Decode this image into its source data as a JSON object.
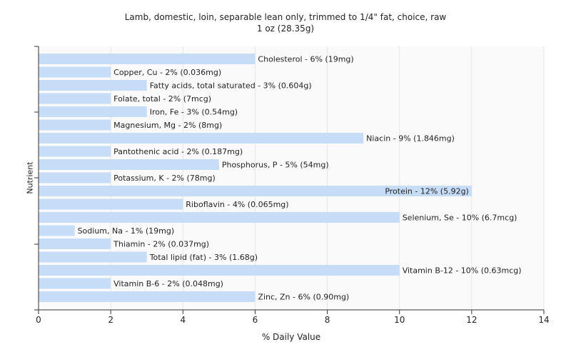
{
  "chart_data": {
    "type": "bar",
    "orientation": "horizontal",
    "title": "Lamb, domestic, loin, separable lean only, trimmed to 1/4\" fat, choice, raw",
    "subtitle": "1 oz (28.35g)",
    "xlabel": "% Daily Value",
    "ylabel": "Nutrient",
    "xlim": [
      0,
      14
    ],
    "xticks": [
      0,
      2,
      4,
      6,
      8,
      10,
      12,
      14
    ],
    "grid": true,
    "bar_color": "#c6dcf7",
    "categories": [
      "Cholesterol",
      "Copper, Cu",
      "Fatty acids, total saturated",
      "Folate, total",
      "Iron, Fe",
      "Magnesium, Mg",
      "Niacin",
      "Pantothenic acid",
      "Phosphorus, P",
      "Potassium, K",
      "Protein",
      "Riboflavin",
      "Selenium, Se",
      "Sodium, Na",
      "Thiamin",
      "Total lipid (fat)",
      "Vitamin B-12",
      "Vitamin B-6",
      "Zinc, Zn"
    ],
    "values": [
      6,
      2,
      3,
      2,
      3,
      2,
      9,
      2,
      5,
      2,
      12,
      4,
      10,
      1,
      2,
      3,
      10,
      2,
      6
    ],
    "labels": [
      "Cholesterol - 6% (19mg)",
      "Copper, Cu - 2% (0.036mg)",
      "Fatty acids, total saturated - 3% (0.604g)",
      "Folate, total - 2% (7mcg)",
      "Iron, Fe - 3% (0.54mg)",
      "Magnesium, Mg - 2% (8mg)",
      "Niacin - 9% (1.846mg)",
      "Pantothenic acid - 2% (0.187mg)",
      "Phosphorus, P - 5% (54mg)",
      "Potassium, K - 2% (78mg)",
      "Protein - 12% (5.92g)",
      "Riboflavin - 4% (0.065mg)",
      "Selenium, Se - 10% (6.7mcg)",
      "Sodium, Na - 1% (19mg)",
      "Thiamin - 2% (0.037mg)",
      "Total lipid (fat) - 3% (1.68g)",
      "Vitamin B-12 - 10% (0.63mcg)",
      "Vitamin B-6 - 2% (0.048mg)",
      "Zinc, Zn - 6% (0.90mg)"
    ]
  }
}
